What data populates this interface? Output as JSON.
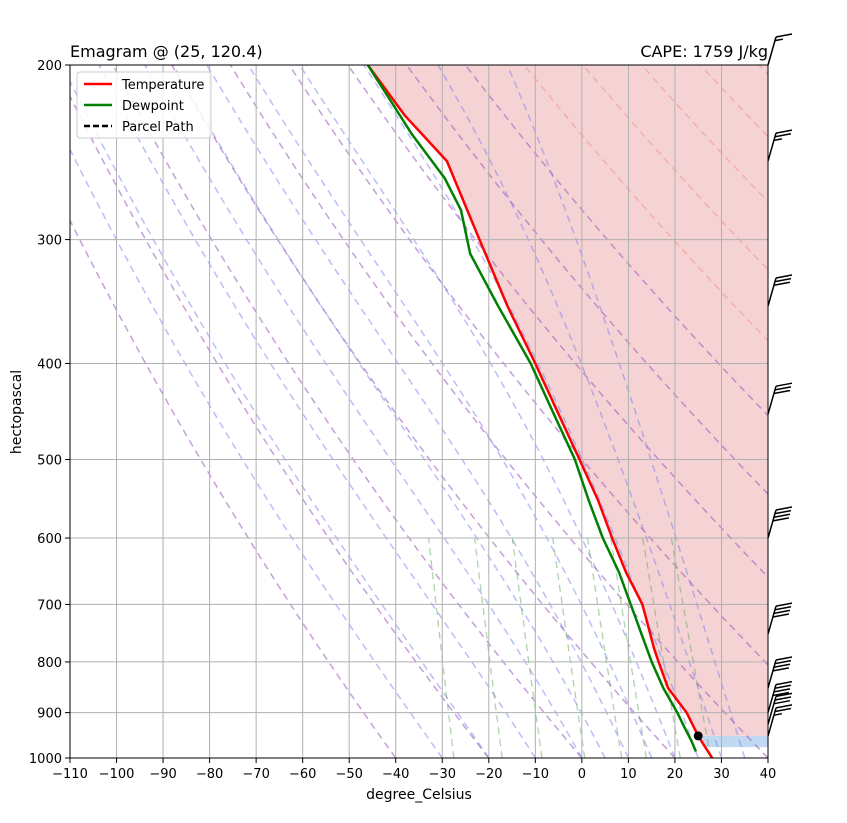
{
  "chart_data": {
    "type": "line",
    "title": "Emagram @ (25, 120.4)",
    "title_right": "CAPE: 1759 J/kg",
    "xlabel": "degree_Celsius",
    "ylabel": "hectopascal",
    "xlim": [
      -110,
      40
    ],
    "ylim": [
      1000,
      200
    ],
    "yscale": "log",
    "x_ticks": [
      -110,
      -100,
      -90,
      -80,
      -70,
      -60,
      -50,
      -40,
      -30,
      -20,
      -10,
      0,
      10,
      20,
      30,
      40
    ],
    "y_ticks": [
      1000,
      900,
      800,
      700,
      600,
      500,
      400,
      300,
      200
    ],
    "grid": true,
    "legend": {
      "position": "top-left",
      "items": [
        {
          "label": "Temperature",
          "color": "#ff0000",
          "style": "solid"
        },
        {
          "label": "Dewpoint",
          "color": "#008000",
          "style": "solid"
        },
        {
          "label": "Parcel Path",
          "color": "#000000",
          "style": "dashed"
        }
      ]
    },
    "series": [
      {
        "name": "Temperature",
        "color": "#ff0000",
        "points": [
          [
            28,
            1000
          ],
          [
            26.5,
            975
          ],
          [
            25,
            950
          ],
          [
            22.5,
            900
          ],
          [
            18.5,
            850
          ],
          [
            16.5,
            800
          ],
          [
            15.5,
            775
          ],
          [
            13,
            700
          ],
          [
            9.5,
            650
          ],
          [
            6.5,
            600
          ],
          [
            3.5,
            550
          ],
          [
            -0.5,
            500
          ],
          [
            -5,
            450
          ],
          [
            -10,
            400
          ],
          [
            -16,
            350
          ],
          [
            -22,
            300
          ],
          [
            -29,
            250
          ],
          [
            -38,
            225
          ],
          [
            -46,
            200
          ]
        ]
      },
      {
        "name": "Dewpoint",
        "color": "#008000",
        "points": [
          [
            24.5,
            985
          ],
          [
            23.5,
            960
          ],
          [
            22,
            930
          ],
          [
            20.5,
            900
          ],
          [
            17.5,
            850
          ],
          [
            15,
            800
          ],
          [
            10.5,
            700
          ],
          [
            8,
            650
          ],
          [
            4.5,
            600
          ],
          [
            1.5,
            550
          ],
          [
            -1.5,
            500
          ],
          [
            -6,
            450
          ],
          [
            -11,
            400
          ],
          [
            -18,
            350
          ],
          [
            -24,
            310
          ],
          [
            -26,
            280
          ],
          [
            -29.5,
            260
          ],
          [
            -36.5,
            235
          ],
          [
            -46,
            200
          ]
        ]
      }
    ],
    "parcel_start": [
      25,
      950
    ],
    "cape_shading": {
      "color": "#f2c4c6",
      "from_pressure": 950,
      "to_pressure": 200
    },
    "cin_shading": {
      "color": "#b9d4f0",
      "pressures": [
        950,
        975
      ]
    },
    "dry_adiabats_theta_c": [
      -40,
      -20,
      0,
      20,
      40,
      60,
      80,
      100,
      120,
      140,
      160,
      180,
      200,
      220,
      240,
      260,
      280
    ],
    "moist_adiabats_c": [
      -30,
      -20,
      -10,
      0,
      5,
      10,
      15,
      20,
      25,
      30,
      35
    ],
    "mixing_ratio_lines_g_kg": [
      0.4,
      1,
      2,
      4,
      7,
      10,
      16,
      24
    ],
    "wind_barbs": [
      {
        "pressure": 200,
        "speed_kt": 15
      },
      {
        "pressure": 250,
        "speed_kt": 25
      },
      {
        "pressure": 350,
        "speed_kt": 30
      },
      {
        "pressure": 450,
        "speed_kt": 30
      },
      {
        "pressure": 600,
        "speed_kt": 40
      },
      {
        "pressure": 750,
        "speed_kt": 40
      },
      {
        "pressure": 850,
        "speed_kt": 40
      },
      {
        "pressure": 900,
        "speed_kt": 40
      },
      {
        "pressure": 925,
        "speed_kt": 30
      },
      {
        "pressure": 950,
        "speed_kt": 25
      }
    ]
  }
}
